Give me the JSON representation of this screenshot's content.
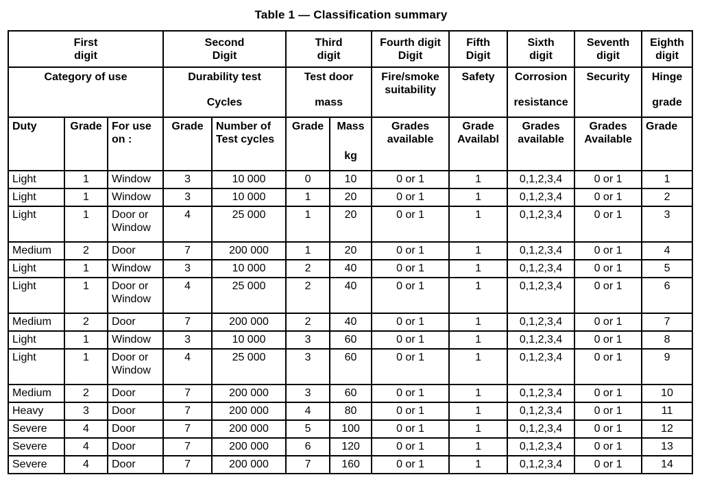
{
  "title": "Table 1 — Classification summary",
  "table": {
    "header_rows": [
      [
        {
          "text": "First\ndigit",
          "span": 3
        },
        {
          "text": "Second\nDigit",
          "span": 2
        },
        {
          "text": "Third\ndigit",
          "span": 2
        },
        {
          "text": "Fourth digit\nDigit"
        },
        {
          "text": "Fifth\nDigit"
        },
        {
          "text": "Sixth\ndigit"
        },
        {
          "text": "Seventh\ndigit"
        },
        {
          "text": "Eighth\ndigit"
        }
      ],
      [
        {
          "text": "Category of use",
          "span": 3
        },
        {
          "text": "Durability test",
          "bottom": "Cycles",
          "span": 2
        },
        {
          "text": "Test door",
          "bottom": "mass",
          "span": 2
        },
        {
          "text": "Fire/smoke\nsuitability"
        },
        {
          "text": "Safety"
        },
        {
          "text": "Corrosion",
          "bottom": "resistance"
        },
        {
          "text": "Security"
        },
        {
          "text": "Hinge",
          "bottom": "grade"
        }
      ],
      [
        {
          "text": "Duty"
        },
        {
          "text": "Grade"
        },
        {
          "text": "For use\non :"
        },
        {
          "text": "Grade"
        },
        {
          "text": "Number of\nTest cycles"
        },
        {
          "text": "Grade"
        },
        {
          "text": "Mass",
          "bottom": "kg"
        },
        {
          "text": "Grades\navailable"
        },
        {
          "text": "Grade\nAvailabl"
        },
        {
          "text": "Grades\navailable"
        },
        {
          "text": "Grades\nAvailable"
        },
        {
          "text": "Grade"
        }
      ]
    ],
    "rows": [
      [
        "Light",
        "1",
        "Window",
        "3",
        "10 000",
        "0",
        "10",
        "0 or 1",
        "1",
        "0,1,2,3,4",
        "0 or 1",
        "1"
      ],
      [
        "Light",
        "1",
        "Window",
        "3",
        "10 000",
        "1",
        "20",
        "0 or 1",
        "1",
        "0,1,2,3,4",
        "0 or 1",
        "2"
      ],
      [
        "Light",
        "1",
        "Door or\nWindow",
        "4",
        "25 000",
        "1",
        "20",
        "0 or 1",
        "1",
        "0,1,2,3,4",
        "0 or 1",
        "3"
      ],
      [
        "Medium",
        "2",
        "Door",
        "7",
        "200 000",
        "1",
        "20",
        "0 or 1",
        "1",
        "0,1,2,3,4",
        "0 or 1",
        "4"
      ],
      [
        "Light",
        "1",
        "Window",
        "3",
        "10 000",
        "2",
        "40",
        "0 or 1",
        "1",
        "0,1,2,3,4",
        "0 or 1",
        "5"
      ],
      [
        "Light",
        "1",
        "Door or\nWindow",
        "4",
        "25 000",
        "2",
        "40",
        "0 or 1",
        "1",
        "0,1,2,3,4",
        "0 or 1",
        "6"
      ],
      [
        "Medium",
        "2",
        "Door",
        "7",
        "200 000",
        "2",
        "40",
        "0 or 1",
        "1",
        "0,1,2,3,4",
        "0 or 1",
        "7"
      ],
      [
        "Light",
        "1",
        "Window",
        "3",
        "10 000",
        "3",
        "60",
        "0 or 1",
        "1",
        "0,1,2,3,4",
        "0 or 1",
        "8"
      ],
      [
        "Light",
        "1",
        "Door or\nWindow",
        "4",
        "25 000",
        "3",
        "60",
        "0 or 1",
        "1",
        "0,1,2,3,4",
        "0 or 1",
        "9"
      ],
      [
        "Medium",
        "2",
        "Door",
        "7",
        "200 000",
        "3",
        "60",
        "0 or 1",
        "1",
        "0,1,2,3,4",
        "0 or 1",
        "10"
      ],
      [
        "Heavy",
        "3",
        "Door",
        "7",
        "200 000",
        "4",
        "80",
        "0 or 1",
        "1",
        "0,1,2,3,4",
        "0 or 1",
        "11"
      ],
      [
        "Severe",
        "4",
        "Door",
        "7",
        "200 000",
        "5",
        "100",
        "0 or 1",
        "1",
        "0,1,2,3,4",
        "0 or 1",
        "12"
      ],
      [
        "Severe",
        "4",
        "Door",
        "7",
        "200 000",
        "6",
        "120",
        "0 or 1",
        "1",
        "0,1,2,3,4",
        "0 or 1",
        "13"
      ],
      [
        "Severe",
        "4",
        "Door",
        "7",
        "200 000",
        "7",
        "160",
        "0 or 1",
        "1",
        "0,1,2,3,4",
        "0 or 1",
        "14"
      ]
    ]
  }
}
